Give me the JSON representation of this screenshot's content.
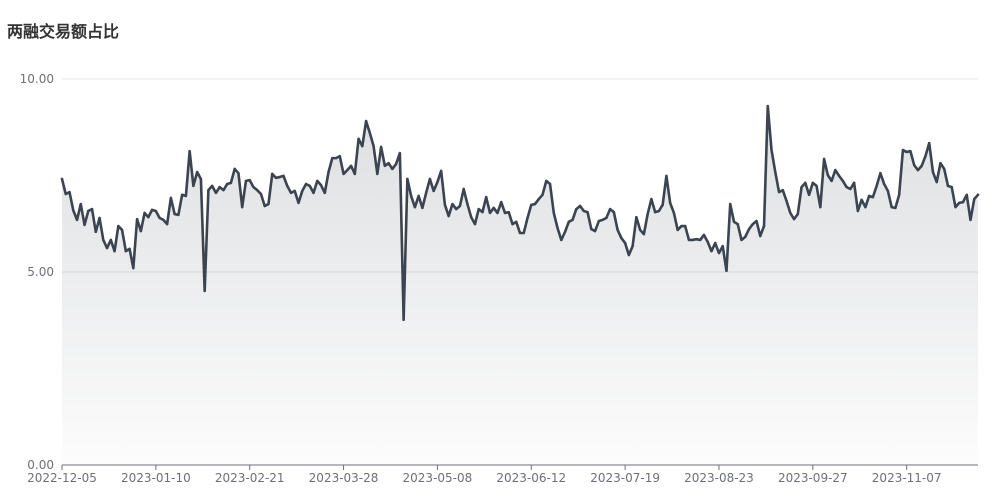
{
  "chart_data": {
    "type": "area",
    "title": "两融交易额占比",
    "ylim": [
      0,
      10
    ],
    "y_tick_labels": [
      "0.00",
      "5.00",
      "10.00"
    ],
    "x_tick_labels": [
      "2022-12-05",
      "2023-01-10",
      "2023-02-21",
      "2023-03-28",
      "2023-05-08",
      "2023-06-12",
      "2023-07-19",
      "2023-08-23",
      "2023-09-27",
      "2023-11-07"
    ],
    "grid": true,
    "legend": "none",
    "categories": [
      "2022-12-05",
      "2022-12-06",
      "2022-12-07",
      "2022-12-08",
      "2022-12-09",
      "2022-12-12",
      "2022-12-13",
      "2022-12-14",
      "2022-12-15",
      "2022-12-16",
      "2022-12-19",
      "2022-12-20",
      "2022-12-21",
      "2022-12-22",
      "2022-12-23",
      "2022-12-26",
      "2022-12-27",
      "2022-12-28",
      "2022-12-29",
      "2022-12-30",
      "2023-01-03",
      "2023-01-04",
      "2023-01-05",
      "2023-01-06",
      "2023-01-09",
      "2023-01-10",
      "2023-01-11",
      "2023-01-12",
      "2023-01-13",
      "2023-01-16",
      "2023-01-17",
      "2023-01-18",
      "2023-01-19",
      "2023-01-20",
      "2023-01-30",
      "2023-01-31",
      "2023-02-01",
      "2023-02-02",
      "2023-02-03",
      "2023-02-06",
      "2023-02-07",
      "2023-02-08",
      "2023-02-09",
      "2023-02-10",
      "2023-02-13",
      "2023-02-14",
      "2023-02-15",
      "2023-02-16",
      "2023-02-17",
      "2023-02-20",
      "2023-02-21",
      "2023-02-22",
      "2023-02-23",
      "2023-02-24",
      "2023-02-27",
      "2023-02-28",
      "2023-03-01",
      "2023-03-02",
      "2023-03-03",
      "2023-03-06",
      "2023-03-07",
      "2023-03-08",
      "2023-03-09",
      "2023-03-10",
      "2023-03-13",
      "2023-03-14",
      "2023-03-15",
      "2023-03-16",
      "2023-03-17",
      "2023-03-20",
      "2023-03-21",
      "2023-03-22",
      "2023-03-23",
      "2023-03-24",
      "2023-03-27",
      "2023-03-28",
      "2023-03-29",
      "2023-03-30",
      "2023-03-31",
      "2023-04-03",
      "2023-04-04",
      "2023-04-06",
      "2023-04-07",
      "2023-04-10",
      "2023-04-11",
      "2023-04-12",
      "2023-04-13",
      "2023-04-14",
      "2023-04-17",
      "2023-04-18",
      "2023-04-19",
      "2023-04-20",
      "2023-04-21",
      "2023-04-24",
      "2023-04-25",
      "2023-04-26",
      "2023-04-27",
      "2023-04-28",
      "2023-05-04",
      "2023-05-05",
      "2023-05-08",
      "2023-05-09",
      "2023-05-10",
      "2023-05-11",
      "2023-05-12",
      "2023-05-15",
      "2023-05-16",
      "2023-05-17",
      "2023-05-18",
      "2023-05-19",
      "2023-05-22",
      "2023-05-23",
      "2023-05-24",
      "2023-05-25",
      "2023-05-26",
      "2023-05-29",
      "2023-05-30",
      "2023-05-31",
      "2023-06-01",
      "2023-06-02",
      "2023-06-05",
      "2023-06-06",
      "2023-06-07",
      "2023-06-08",
      "2023-06-09",
      "2023-06-12",
      "2023-06-13",
      "2023-06-14",
      "2023-06-15",
      "2023-06-16",
      "2023-06-19",
      "2023-06-20",
      "2023-06-21",
      "2023-06-26",
      "2023-06-27",
      "2023-06-28",
      "2023-06-29",
      "2023-06-30",
      "2023-07-03",
      "2023-07-04",
      "2023-07-05",
      "2023-07-06",
      "2023-07-07",
      "2023-07-10",
      "2023-07-11",
      "2023-07-12",
      "2023-07-13",
      "2023-07-14",
      "2023-07-17",
      "2023-07-18",
      "2023-07-19",
      "2023-07-20",
      "2023-07-21",
      "2023-07-24",
      "2023-07-25",
      "2023-07-26",
      "2023-07-27",
      "2023-07-28",
      "2023-07-31",
      "2023-08-01",
      "2023-08-02",
      "2023-08-03",
      "2023-08-04",
      "2023-08-07",
      "2023-08-08",
      "2023-08-09",
      "2023-08-10",
      "2023-08-11",
      "2023-08-14",
      "2023-08-15",
      "2023-08-16",
      "2023-08-17",
      "2023-08-18",
      "2023-08-21",
      "2023-08-22",
      "2023-08-23",
      "2023-08-24",
      "2023-08-25",
      "2023-08-28",
      "2023-08-29",
      "2023-08-30",
      "2023-08-31",
      "2023-09-01",
      "2023-09-04",
      "2023-09-05",
      "2023-09-06",
      "2023-09-07",
      "2023-09-08",
      "2023-09-11",
      "2023-09-12",
      "2023-09-13",
      "2023-09-14",
      "2023-09-15",
      "2023-09-18",
      "2023-09-19",
      "2023-09-20",
      "2023-09-21",
      "2023-09-22",
      "2023-09-25",
      "2023-09-26",
      "2023-09-27",
      "2023-09-28",
      "2023-10-07",
      "2023-10-08",
      "2023-10-09",
      "2023-10-10",
      "2023-10-11",
      "2023-10-12",
      "2023-10-13",
      "2023-10-16",
      "2023-10-17",
      "2023-10-18",
      "2023-10-19",
      "2023-10-20",
      "2023-10-23",
      "2023-10-24",
      "2023-10-25",
      "2023-10-26",
      "2023-10-27",
      "2023-10-30",
      "2023-10-31",
      "2023-11-01",
      "2023-11-02",
      "2023-11-03",
      "2023-11-06",
      "2023-11-07",
      "2023-11-08",
      "2023-11-09",
      "2023-11-10",
      "2023-11-13",
      "2023-11-14",
      "2023-11-15",
      "2023-11-16",
      "2023-11-17",
      "2023-11-20",
      "2023-11-21",
      "2023-11-22",
      "2023-11-23",
      "2023-11-24",
      "2023-11-27",
      "2023-11-28",
      "2023-11-29",
      "2023-11-30",
      "2023-12-01",
      "2023-12-04"
    ],
    "values": [
      7.41,
      7.02,
      7.07,
      6.6,
      6.35,
      6.76,
      6.22,
      6.58,
      6.63,
      6.04,
      6.4,
      5.83,
      5.62,
      5.83,
      5.54,
      6.19,
      6.09,
      5.54,
      5.6,
      5.1,
      6.37,
      6.06,
      6.53,
      6.42,
      6.61,
      6.58,
      6.4,
      6.35,
      6.24,
      6.92,
      6.5,
      6.48,
      7.0,
      6.97,
      8.13,
      7.23,
      7.59,
      7.41,
      4.51,
      7.12,
      7.23,
      7.05,
      7.2,
      7.12,
      7.28,
      7.31,
      7.67,
      7.56,
      6.68,
      7.36,
      7.38,
      7.2,
      7.12,
      7.02,
      6.71,
      6.76,
      7.54,
      7.44,
      7.46,
      7.49,
      7.23,
      7.05,
      7.1,
      6.79,
      7.1,
      7.28,
      7.23,
      7.05,
      7.36,
      7.25,
      7.05,
      7.59,
      7.95,
      7.95,
      8.0,
      7.54,
      7.64,
      7.75,
      7.54,
      8.45,
      8.26,
      8.91,
      8.6,
      8.26,
      7.54,
      8.24,
      7.75,
      7.82,
      7.67,
      7.8,
      8.08,
      3.76,
      7.41,
      6.97,
      6.68,
      6.97,
      6.66,
      7.05,
      7.41,
      7.1,
      7.33,
      7.62,
      6.74,
      6.45,
      6.76,
      6.63,
      6.71,
      7.15,
      6.76,
      6.42,
      6.24,
      6.63,
      6.55,
      6.94,
      6.53,
      6.66,
      6.53,
      6.81,
      6.53,
      6.55,
      6.24,
      6.3,
      6.01,
      6.01,
      6.4,
      6.74,
      6.76,
      6.89,
      7.0,
      7.36,
      7.28,
      6.53,
      6.14,
      5.83,
      6.04,
      6.3,
      6.35,
      6.63,
      6.71,
      6.58,
      6.55,
      6.11,
      6.06,
      6.32,
      6.35,
      6.4,
      6.63,
      6.55,
      6.09,
      5.88,
      5.75,
      5.44,
      5.67,
      6.42,
      6.09,
      5.98,
      6.5,
      6.89,
      6.55,
      6.58,
      6.74,
      7.49,
      6.79,
      6.53,
      6.09,
      6.19,
      6.19,
      5.83,
      5.83,
      5.85,
      5.83,
      5.96,
      5.78,
      5.54,
      5.75,
      5.49,
      5.67,
      5.03,
      6.76,
      6.3,
      6.24,
      5.83,
      5.91,
      6.11,
      6.24,
      6.32,
      5.93,
      6.19,
      9.3,
      8.16,
      7.59,
      7.07,
      7.12,
      6.84,
      6.53,
      6.37,
      6.5,
      7.2,
      7.31,
      7.0,
      7.31,
      7.23,
      6.68,
      7.93,
      7.51,
      7.36,
      7.64,
      7.49,
      7.36,
      7.2,
      7.15,
      7.31,
      6.58,
      6.87,
      6.68,
      6.97,
      6.94,
      7.23,
      7.56,
      7.28,
      7.1,
      6.68,
      6.66,
      7.0,
      8.16,
      8.11,
      8.13,
      7.77,
      7.64,
      7.75,
      8.0,
      8.34,
      7.59,
      7.33,
      7.82,
      7.67,
      7.23,
      7.2,
      6.68,
      6.79,
      6.81,
      7.0,
      6.35,
      6.89,
      7.0
    ]
  },
  "colors": {
    "title": "#333333",
    "line": "#3b4450",
    "area": "#3b4450",
    "grid": "#e0e6f1",
    "axis": "#6e7079",
    "tick_text": "#6e7079"
  }
}
